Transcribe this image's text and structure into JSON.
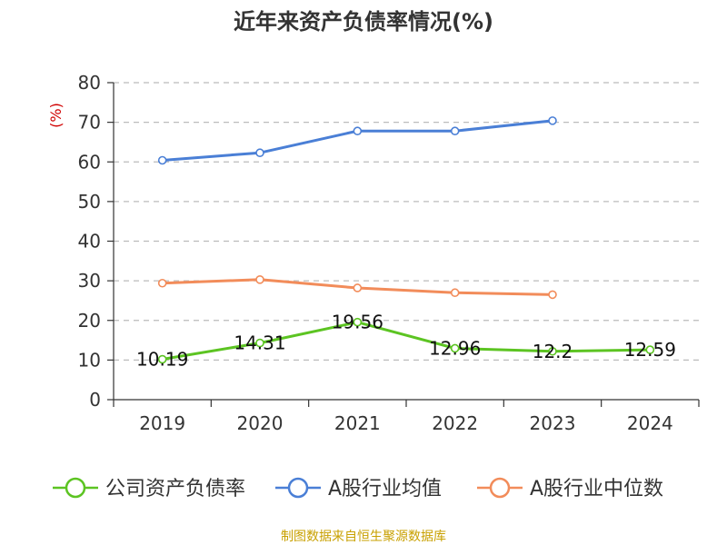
{
  "title": "近年来资产负债率情况(%)",
  "source": "制图数据来自恒生聚源数据库",
  "chart_data": {
    "type": "line",
    "title": "近年来资产负债率情况(%)",
    "ylabel": "(%)",
    "xlabel": "",
    "ylim": [
      0,
      80
    ],
    "yticks": [
      0,
      10,
      20,
      30,
      40,
      50,
      60,
      70,
      80
    ],
    "categories": [
      "2019",
      "2020",
      "2021",
      "2022",
      "2023",
      "2024"
    ],
    "grid": "horizontal dashed",
    "legend_position": "bottom",
    "series": [
      {
        "name": "公司资产负债率",
        "color": "#5cc422",
        "values": [
          10.19,
          14.31,
          19.56,
          12.96,
          12.2,
          12.59
        ],
        "labels": [
          "10.19",
          "14.31",
          "19.56",
          "12.96",
          "12.2",
          "12.59"
        ]
      },
      {
        "name": "A股行业均值",
        "color": "#4a7fd6",
        "values": [
          60.4,
          62.3,
          67.8,
          67.8,
          70.4,
          null
        ]
      },
      {
        "name": "A股行业中位数",
        "color": "#f28c5a",
        "values": [
          29.4,
          30.3,
          28.2,
          27.0,
          26.5,
          null
        ]
      }
    ]
  }
}
